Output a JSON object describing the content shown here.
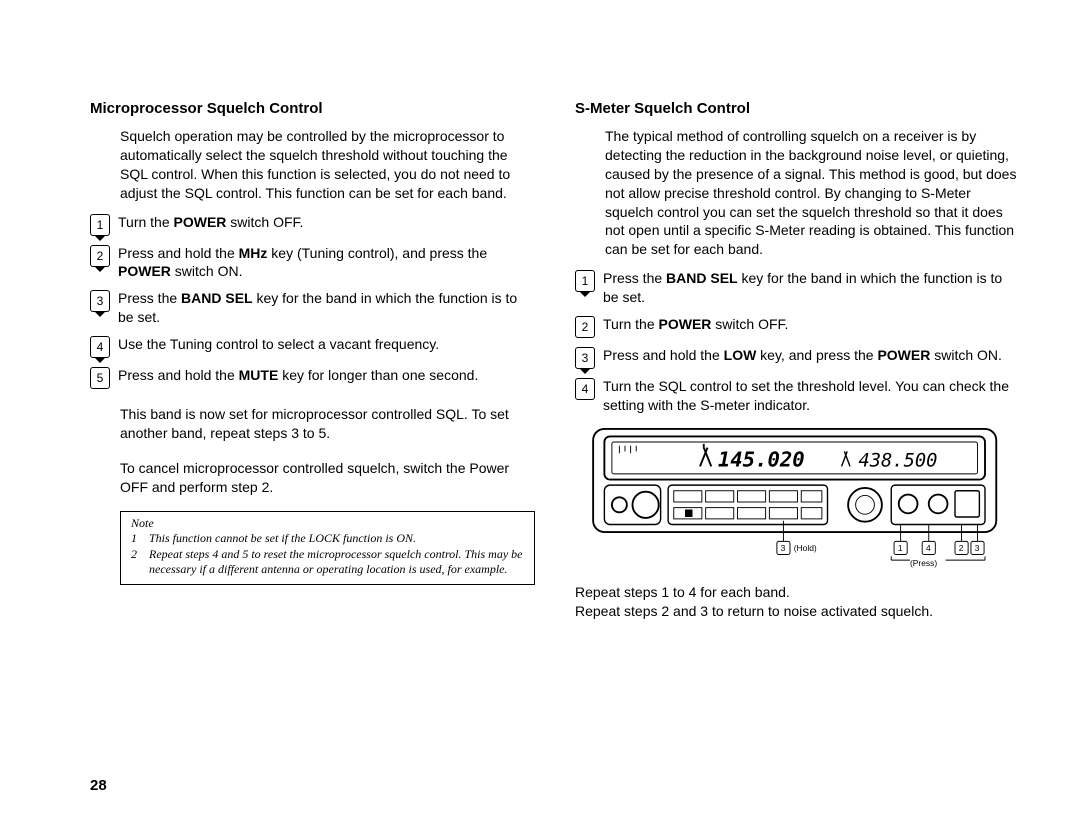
{
  "left": {
    "heading": "Microprocessor Squelch Control",
    "intro": "Squelch operation may be controlled by the microprocessor to automatically select the squelch threshold without touching the SQL control. When this function is selected, you do not need to adjust the SQL control. This function can be set for each band.",
    "steps": [
      {
        "n": "1",
        "pointer": true,
        "html": "Turn the <b>POWER</b> switch OFF."
      },
      {
        "n": "2",
        "pointer": true,
        "html": "Press and hold the <b>MHz</b> key (Tuning control), and press the <b>POWER</b> switch ON."
      },
      {
        "n": "3",
        "pointer": true,
        "html": "Press the <b>BAND SEL</b> key for the band in which the function is to be set."
      },
      {
        "n": "4",
        "pointer": true,
        "html": "Use the Tuning control to select a vacant frequency."
      },
      {
        "n": "5",
        "pointer": false,
        "html": "Press and hold the <b>MUTE</b> key for longer than one second."
      }
    ],
    "followups": [
      "This band is now set for microprocessor controlled SQL. To set another band, repeat steps 3 to 5.",
      "To cancel microprocessor controlled squelch, switch the Power OFF and perform step 2."
    ],
    "note": {
      "title": "Note",
      "items": [
        {
          "n": "1",
          "text": "This function cannot be set if the LOCK function is ON."
        },
        {
          "n": "2",
          "text": "Repeat steps 4 and 5 to reset the microprocessor squelch control. This may be necessary if a different antenna or operating location is used, for example."
        }
      ]
    },
    "page_number": "28"
  },
  "right": {
    "heading": "S-Meter Squelch Control",
    "intro": "The typical method of controlling squelch on a receiver is by detecting the reduction in the background noise level, or quieting, caused by the presence of a signal. This method is good, but does not allow precise threshold control. By changing to S-Meter squelch control you can set the squelch threshold so that it does not open until a specific S-Meter reading is obtained. This function can be set for each band.",
    "steps": [
      {
        "n": "1",
        "pointer": true,
        "html": "Press the <b>BAND SEL</b> key for the band in which the function is to be set."
      },
      {
        "n": "2",
        "pointer": false,
        "html": "Turn the <b>POWER</b> switch OFF."
      },
      {
        "n": "3",
        "pointer": true,
        "html": "Press and hold the <b>LOW</b> key, and press the <b>POWER</b> switch ON."
      },
      {
        "n": "4",
        "pointer": false,
        "html": "Turn the SQL control to set the threshold level. You can check the setting with the S-meter indicator."
      }
    ],
    "device": {
      "display_left": "145.020",
      "display_right": "438.500",
      "label_hold": "(Hold)",
      "label_press": "(Press)",
      "callouts": [
        "3",
        "1",
        "4",
        "2",
        "3"
      ]
    },
    "repeat": [
      "Repeat steps 1 to 4 for each band.",
      "Repeat steps 2 and 3 to return to noise activated squelch."
    ]
  },
  "style": {
    "text_color": "#000000",
    "bg_color": "#ffffff",
    "border_color": "#000000",
    "heading_fontsize": 15,
    "body_fontsize": 14,
    "note_fontsize": 12
  }
}
